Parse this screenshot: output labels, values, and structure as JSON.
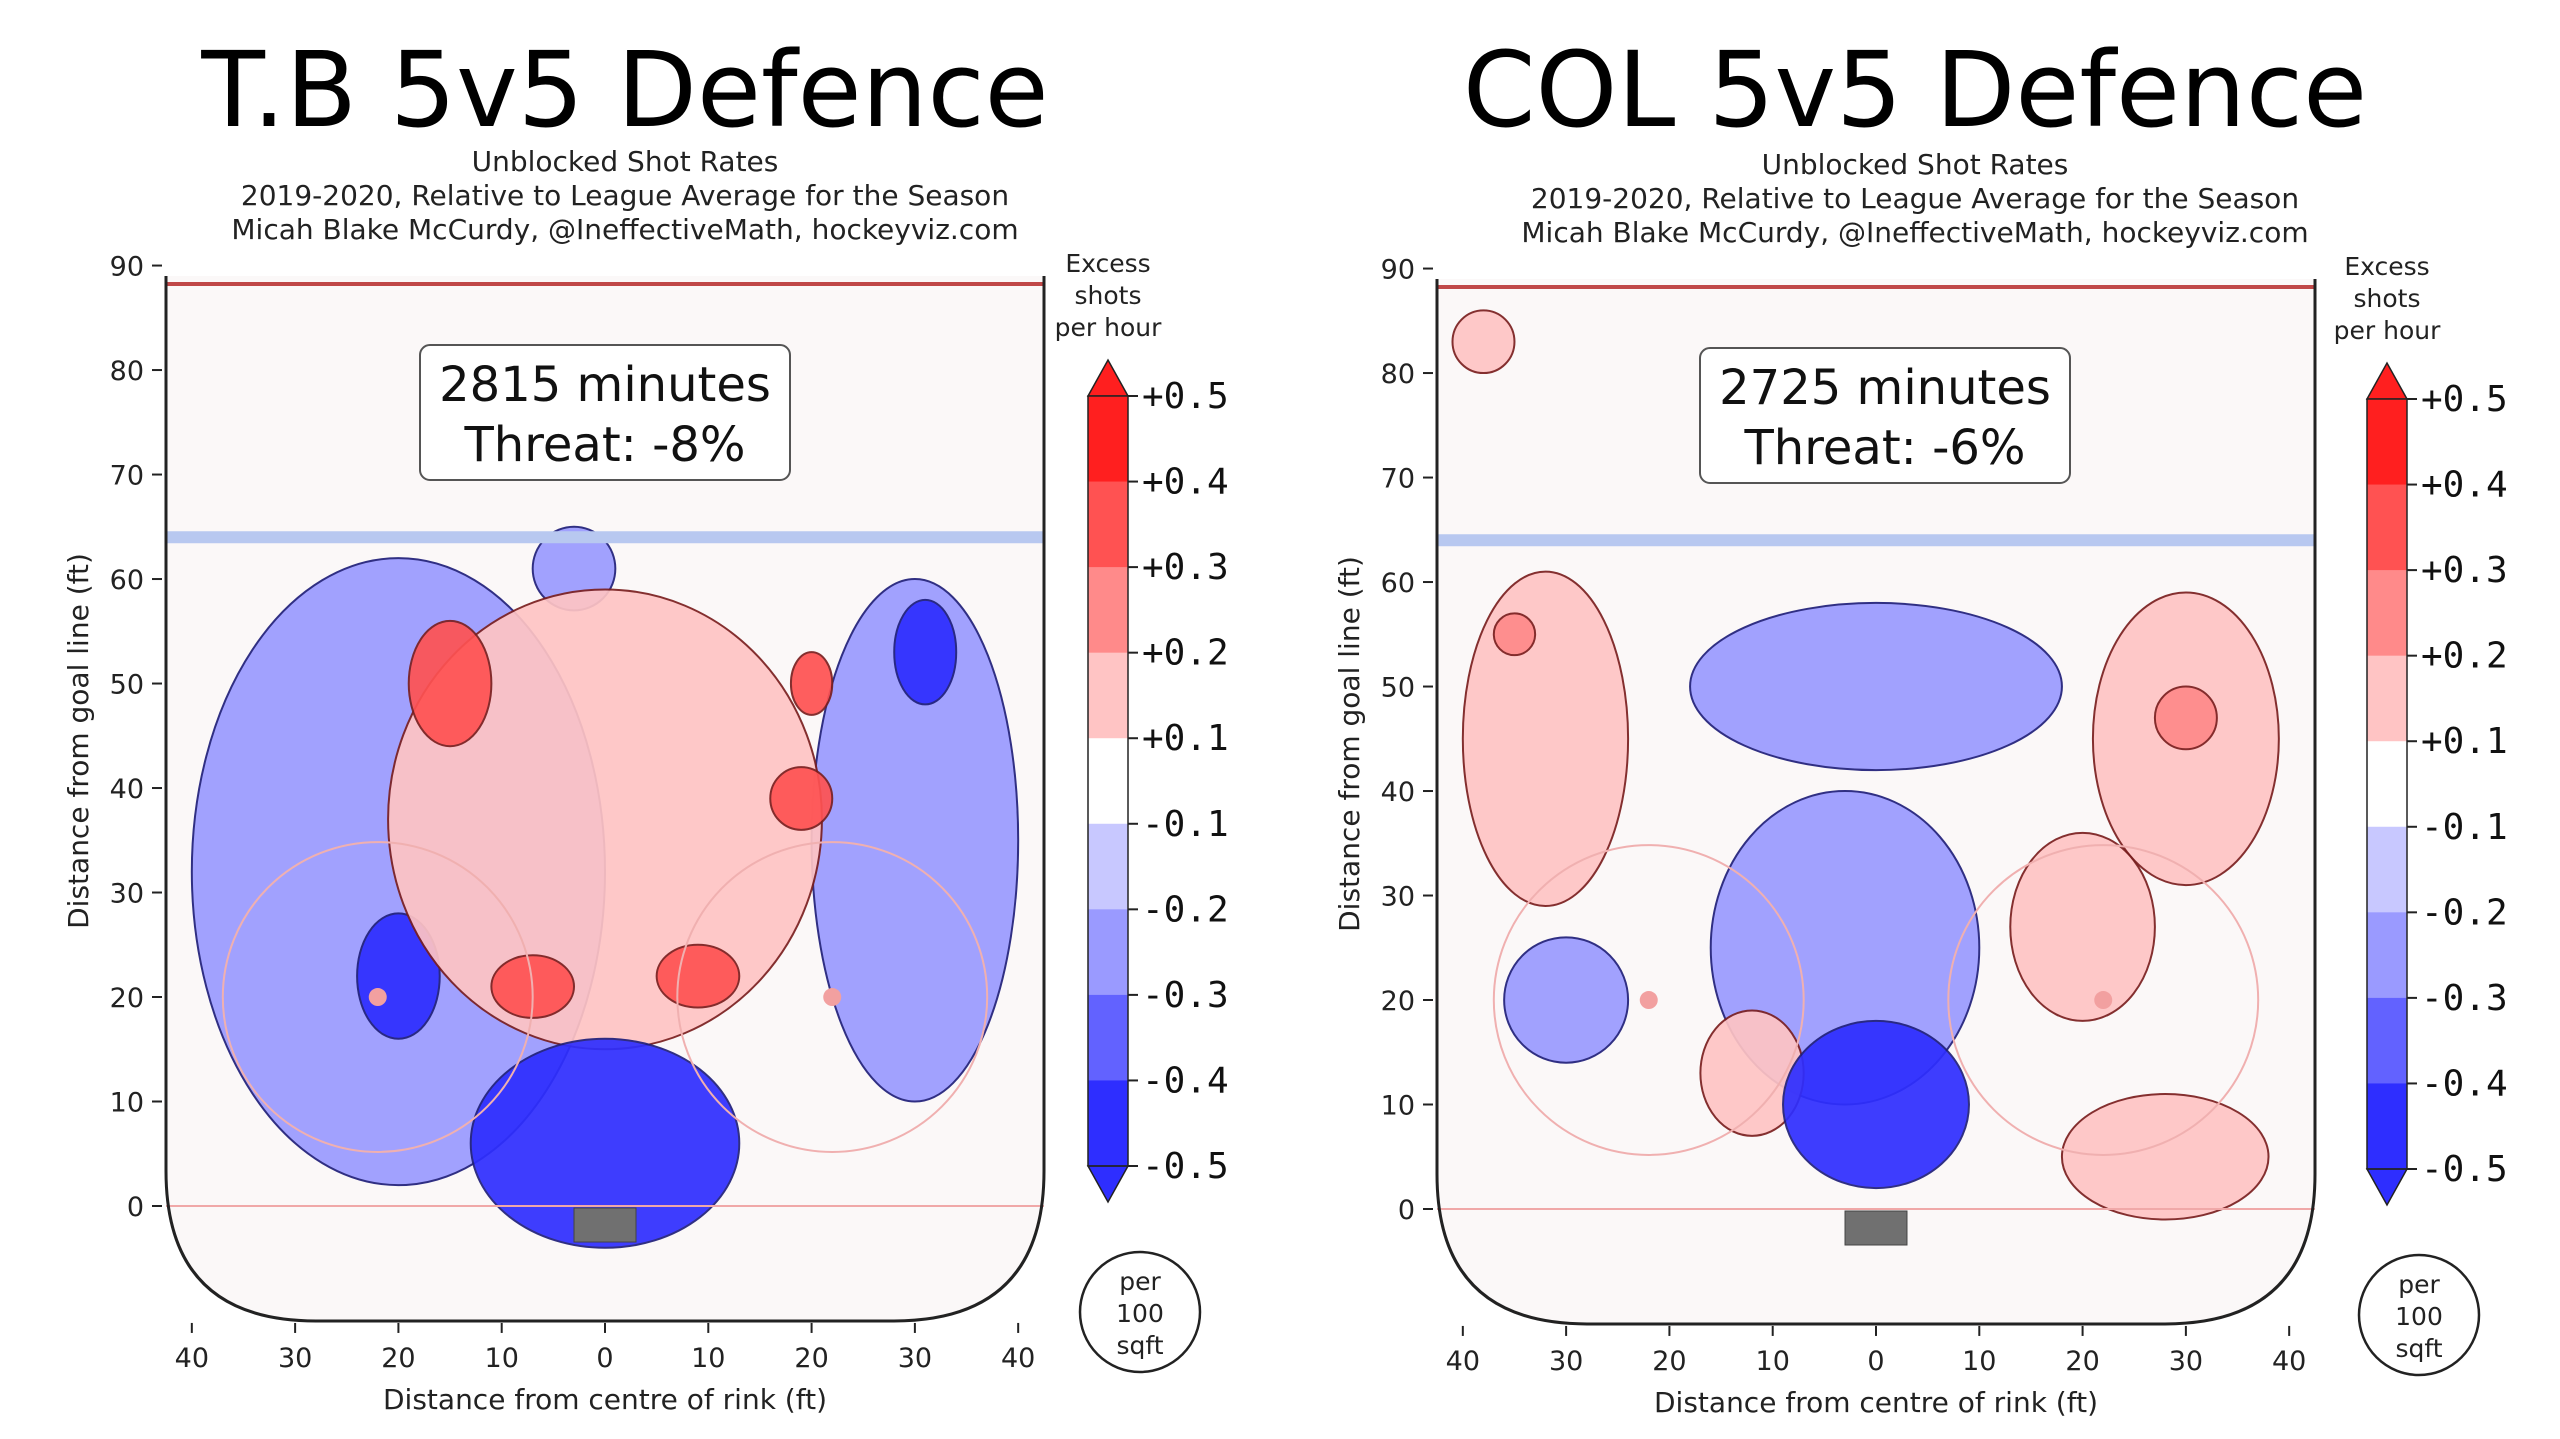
{
  "colorbar": {
    "title": [
      "Excess",
      "shots",
      "per hour"
    ],
    "labels": [
      "+0.5",
      "+0.4",
      "+0.3",
      "+0.2",
      "+0.1",
      "-0.1",
      "-0.2",
      "-0.3",
      "-0.4",
      "-0.5"
    ],
    "colors": [
      "#ff1f1f",
      "#ff5252",
      "#ff8a8a",
      "#ffc4c4",
      "#ffffff",
      "#c8c8ff",
      "#9a9aff",
      "#6262ff",
      "#2e2eff"
    ],
    "footer": [
      "per",
      "100",
      "sqft"
    ]
  },
  "axes": {
    "xlabel": "Distance from centre of rink (ft)",
    "ylabel": "Distance from goal line (ft)",
    "xticks": [
      "40",
      "30",
      "20",
      "10",
      "0",
      "10",
      "20",
      "30",
      "40"
    ],
    "yticks": [
      "90",
      "80",
      "70",
      "60",
      "50",
      "40",
      "30",
      "20",
      "10",
      "0"
    ]
  },
  "chart_data": [
    {
      "type": "heatmap",
      "title": "T.B 5v5 Defence",
      "subtitle_lines": [
        "Unblocked Shot Rates",
        "2019-2020, Relative to League Average for the Season",
        "Micah Blake McCurdy, @IneffectiveMath, hockeyviz.com"
      ],
      "box_lines": [
        "2815 minutes",
        "Threat: -8%"
      ],
      "xlim": [
        -42.5,
        42.5
      ],
      "ylim": [
        -11,
        89
      ],
      "x_unit": "ft",
      "y_unit": "ft",
      "blue_line_y": 64,
      "regions": [
        {
          "x": -20,
          "y": 32,
          "rx": 20,
          "ry": 30,
          "value": -0.15
        },
        {
          "x": 30,
          "y": 35,
          "rx": 10,
          "ry": 25,
          "value": -0.15
        },
        {
          "x": -20,
          "y": 22,
          "rx": 4,
          "ry": 6,
          "value": -0.3
        },
        {
          "x": 31,
          "y": 53,
          "rx": 3,
          "ry": 5,
          "value": -0.3
        },
        {
          "x": -3,
          "y": 61,
          "rx": 4,
          "ry": 4,
          "value": -0.2
        },
        {
          "x": 0,
          "y": 37,
          "rx": 21,
          "ry": 22,
          "value": 0.15
        },
        {
          "x": -15,
          "y": 50,
          "rx": 4,
          "ry": 6,
          "value": 0.35
        },
        {
          "x": 20,
          "y": 50,
          "rx": 2,
          "ry": 3,
          "value": 0.35
        },
        {
          "x": 19,
          "y": 39,
          "rx": 3,
          "ry": 3,
          "value": 0.35
        },
        {
          "x": -7,
          "y": 21,
          "rx": 4,
          "ry": 3,
          "value": 0.35
        },
        {
          "x": 9,
          "y": 22,
          "rx": 4,
          "ry": 3,
          "value": 0.35
        },
        {
          "x": 0,
          "y": 6,
          "rx": 13,
          "ry": 10,
          "value": -0.45
        }
      ]
    },
    {
      "type": "heatmap",
      "title": "COL 5v5 Defence",
      "subtitle_lines": [
        "Unblocked Shot Rates",
        "2019-2020, Relative to League Average for the Season",
        "Micah Blake McCurdy, @IneffectiveMath, hockeyviz.com"
      ],
      "box_lines": [
        "2725 minutes",
        "Threat: -6%"
      ],
      "xlim": [
        -42.5,
        42.5
      ],
      "ylim": [
        -11,
        89
      ],
      "x_unit": "ft",
      "y_unit": "ft",
      "blue_line_y": 64,
      "regions": [
        {
          "x": -38,
          "y": 83,
          "rx": 3,
          "ry": 3,
          "value": 0.15
        },
        {
          "x": -32,
          "y": 45,
          "rx": 8,
          "ry": 16,
          "value": 0.15
        },
        {
          "x": -35,
          "y": 55,
          "rx": 2,
          "ry": 2,
          "value": 0.3
        },
        {
          "x": 0,
          "y": 50,
          "rx": 18,
          "ry": 8,
          "value": -0.15
        },
        {
          "x": -3,
          "y": 25,
          "rx": 13,
          "ry": 15,
          "value": -0.15
        },
        {
          "x": -30,
          "y": 20,
          "rx": 6,
          "ry": 6,
          "value": -0.15
        },
        {
          "x": 30,
          "y": 45,
          "rx": 9,
          "ry": 14,
          "value": 0.15
        },
        {
          "x": 30,
          "y": 47,
          "rx": 3,
          "ry": 3,
          "value": 0.3
        },
        {
          "x": 20,
          "y": 27,
          "rx": 7,
          "ry": 9,
          "value": 0.15
        },
        {
          "x": 28,
          "y": 5,
          "rx": 10,
          "ry": 6,
          "value": 0.15
        },
        {
          "x": -12,
          "y": 13,
          "rx": 5,
          "ry": 6,
          "value": 0.15
        },
        {
          "x": 0,
          "y": 10,
          "rx": 9,
          "ry": 8,
          "value": -0.4
        }
      ]
    }
  ]
}
